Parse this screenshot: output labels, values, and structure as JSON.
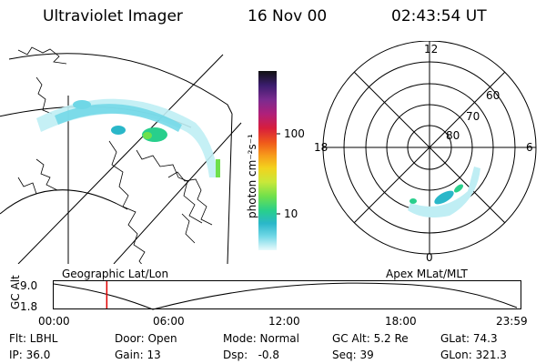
{
  "header": {
    "title": "Ultraviolet Imager",
    "date": "16 Nov 00",
    "time": "02:43:54 UT"
  },
  "colorbar": {
    "label": "photon cm⁻²s⁻¹",
    "ticks": [
      "100",
      "10"
    ],
    "colors": [
      "#111111",
      "#3b1d6e",
      "#7a2b8f",
      "#b0207a",
      "#d81e3c",
      "#ef5a1a",
      "#f79a1b",
      "#f3d21d",
      "#c8e83a",
      "#6fe04c",
      "#28cf8c",
      "#2ab7c9",
      "#6fd7e6",
      "#bfeef4",
      "#e9fafc"
    ]
  },
  "left_panel": {
    "label": "Geographic Lat/Lon"
  },
  "right_panel": {
    "label": "Apex MLat/MLT",
    "mlt_labels": {
      "top": "12",
      "left": "18",
      "right": "6",
      "bottom": "0"
    },
    "lat_labels": [
      "60",
      "70",
      "80"
    ]
  },
  "altitude_plot": {
    "ylabel": "GC Alt",
    "yticks": [
      "9.0",
      "1.8"
    ],
    "xticks": [
      "00:00",
      "06:00",
      "12:00",
      "18:00",
      "23:59"
    ],
    "marker_time_hours": 2.73,
    "marker_color": "#e00000"
  },
  "footer": {
    "flt": "Flt: LBHL",
    "door": "Door: Open",
    "mode": "Mode: Normal",
    "gc_alt": "GC Alt: 5.2 Re",
    "glat": "GLat: 74.3",
    "ip": "IP: 36.0",
    "gain": "Gain: 13",
    "dsp": "Dsp:   -0.8",
    "seq": "Seq: 39",
    "glon": "GLon: 321.3"
  }
}
